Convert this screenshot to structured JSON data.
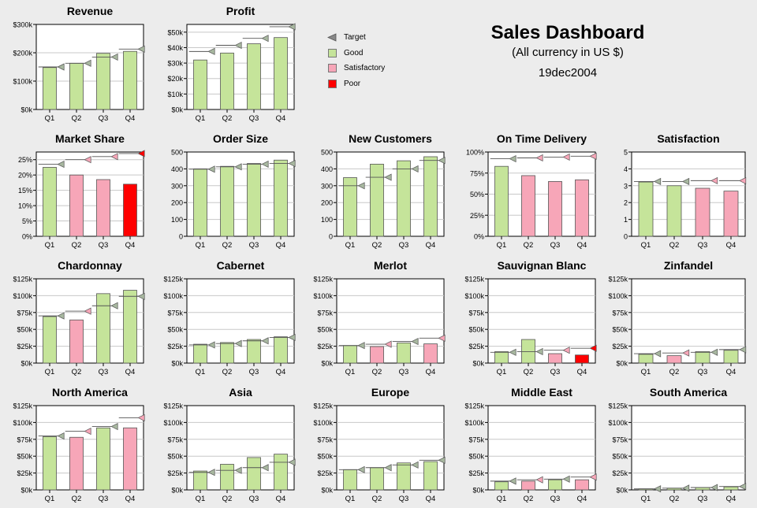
{
  "dashboard": {
    "title": "Sales Dashboard",
    "subtitle": "(All currency in US $)",
    "date": "19dec2004"
  },
  "legend": [
    {
      "label": "Target",
      "kind": "target"
    },
    {
      "label": "Good",
      "kind": "good"
    },
    {
      "label": "Satisfactory",
      "kind": "sat"
    },
    {
      "label": "Poor",
      "kind": "poor"
    }
  ],
  "colors": {
    "good": "#c5e49a",
    "satisfactory": "#f7a6b8",
    "poor": "#ff0000",
    "target_marker": "#a8b8a0",
    "background": "#ececec"
  },
  "chart_data": [
    {
      "type": "bar",
      "title": "Revenue",
      "categories": [
        "Q1",
        "Q2",
        "Q3",
        "Q4"
      ],
      "values": [
        148000,
        163000,
        198000,
        205000
      ],
      "targets": [
        150000,
        163000,
        185000,
        213000
      ],
      "status": [
        "good",
        "good",
        "good",
        "good"
      ],
      "ylim": [
        0,
        300000
      ],
      "yticks": [
        0,
        100000,
        200000,
        300000
      ],
      "ytick_labels": [
        "$0k",
        "$100k",
        "$200k",
        "$300k"
      ]
    },
    {
      "type": "bar",
      "title": "Profit",
      "categories": [
        "Q1",
        "Q2",
        "Q3",
        "Q4"
      ],
      "values": [
        32000,
        36500,
        42500,
        46500
      ],
      "targets": [
        37500,
        41500,
        46000,
        53500
      ],
      "status": [
        "good",
        "good",
        "good",
        "good"
      ],
      "ylim": [
        0,
        55000
      ],
      "yticks": [
        0,
        10000,
        20000,
        30000,
        40000,
        50000
      ],
      "ytick_labels": [
        "$0k",
        "$10k",
        "$20k",
        "$30k",
        "$40k",
        "$50k"
      ]
    },
    {
      "type": "bar",
      "title": "Market Share",
      "categories": [
        "Q1",
        "Q2",
        "Q3",
        "Q4"
      ],
      "values": [
        22.5,
        20,
        18.5,
        17
      ],
      "targets": [
        23.5,
        25,
        26,
        27
      ],
      "status": [
        "good",
        "sat",
        "sat",
        "poor"
      ],
      "ylim": [
        0,
        27.5
      ],
      "yticks": [
        0,
        5,
        10,
        15,
        20,
        25
      ],
      "ytick_labels": [
        "0%",
        "5%",
        "10%",
        "15%",
        "20%",
        "25%"
      ]
    },
    {
      "type": "bar",
      "title": "Order Size",
      "categories": [
        "Q1",
        "Q2",
        "Q3",
        "Q4"
      ],
      "values": [
        400,
        415,
        432,
        452
      ],
      "targets": [
        398,
        412,
        428,
        432
      ],
      "status": [
        "good",
        "good",
        "good",
        "good"
      ],
      "ylim": [
        0,
        500
      ],
      "yticks": [
        0,
        100,
        200,
        300,
        400,
        500
      ],
      "ytick_labels": [
        "0",
        "100",
        "200",
        "300",
        "400",
        "500"
      ]
    },
    {
      "type": "bar",
      "title": "New Customers",
      "categories": [
        "Q1",
        "Q2",
        "Q3",
        "Q4"
      ],
      "values": [
        348,
        428,
        448,
        472
      ],
      "targets": [
        300,
        350,
        400,
        450
      ],
      "status": [
        "good",
        "good",
        "good",
        "good"
      ],
      "ylim": [
        0,
        500
      ],
      "yticks": [
        0,
        100,
        200,
        300,
        400,
        500
      ],
      "ytick_labels": [
        "0",
        "100",
        "200",
        "300",
        "400",
        "500"
      ]
    },
    {
      "type": "bar",
      "title": "On Time Delivery",
      "categories": [
        "Q1",
        "Q2",
        "Q3",
        "Q4"
      ],
      "values": [
        83,
        72,
        65,
        67
      ],
      "targets": [
        92,
        93,
        94,
        95
      ],
      "status": [
        "good",
        "sat",
        "sat",
        "sat"
      ],
      "ylim": [
        0,
        100
      ],
      "yticks": [
        0,
        25,
        50,
        75,
        100
      ],
      "ytick_labels": [
        "0%",
        "25%",
        "50%",
        "75%",
        "100%"
      ]
    },
    {
      "type": "bar",
      "title": "Satisfaction",
      "categories": [
        "Q1",
        "Q2",
        "Q3",
        "Q4"
      ],
      "values": [
        3.22,
        3.0,
        2.85,
        2.68
      ],
      "targets": [
        3.25,
        3.25,
        3.3,
        3.3
      ],
      "status": [
        "good",
        "good",
        "sat",
        "sat"
      ],
      "ylim": [
        0,
        5
      ],
      "yticks": [
        0,
        1,
        2,
        3,
        4,
        5
      ],
      "ytick_labels": [
        "0",
        "1",
        "2",
        "3",
        "4",
        "5"
      ]
    },
    {
      "type": "bar",
      "title": "Chardonnay",
      "categories": [
        "Q1",
        "Q2",
        "Q3",
        "Q4"
      ],
      "values": [
        69000,
        64000,
        103000,
        108000
      ],
      "targets": [
        70000,
        77000,
        85000,
        99000
      ],
      "status": [
        "good",
        "sat",
        "good",
        "good"
      ],
      "ylim": [
        0,
        125000
      ],
      "yticks": [
        0,
        25000,
        50000,
        75000,
        100000,
        125000
      ],
      "ytick_labels": [
        "$0k",
        "$25k",
        "$50k",
        "$75k",
        "$100k",
        "$125k"
      ]
    },
    {
      "type": "bar",
      "title": "Cabernet",
      "categories": [
        "Q1",
        "Q2",
        "Q3",
        "Q4"
      ],
      "values": [
        28000,
        30500,
        35000,
        39000
      ],
      "targets": [
        27000,
        29000,
        33000,
        38000
      ],
      "status": [
        "good",
        "good",
        "good",
        "good"
      ],
      "ylim": [
        0,
        125000
      ],
      "yticks": [
        0,
        25000,
        50000,
        75000,
        100000,
        125000
      ],
      "ytick_labels": [
        "$0k",
        "$25k",
        "$50k",
        "$75k",
        "$100k",
        "$125k"
      ]
    },
    {
      "type": "bar",
      "title": "Merlot",
      "categories": [
        "Q1",
        "Q2",
        "Q3",
        "Q4"
      ],
      "values": [
        26000,
        24500,
        30000,
        28500
      ],
      "targets": [
        26000,
        28000,
        32000,
        37000
      ],
      "status": [
        "good",
        "sat",
        "good",
        "sat"
      ],
      "ylim": [
        0,
        125000
      ],
      "yticks": [
        0,
        25000,
        50000,
        75000,
        100000,
        125000
      ],
      "ytick_labels": [
        "$0k",
        "$25k",
        "$50k",
        "$75k",
        "$100k",
        "$125k"
      ]
    },
    {
      "type": "bar",
      "title": "Sauvignan Blanc",
      "categories": [
        "Q1",
        "Q2",
        "Q3",
        "Q4"
      ],
      "values": [
        17000,
        35000,
        14000,
        12000
      ],
      "targets": [
        16000,
        17000,
        19000,
        22000
      ],
      "status": [
        "good",
        "good",
        "sat",
        "poor"
      ],
      "ylim": [
        0,
        125000
      ],
      "yticks": [
        0,
        25000,
        50000,
        75000,
        100000,
        125000
      ],
      "ytick_labels": [
        "$0k",
        "$25k",
        "$50k",
        "$75k",
        "$100k",
        "$125k"
      ]
    },
    {
      "type": "bar",
      "title": "Zinfandel",
      "categories": [
        "Q1",
        "Q2",
        "Q3",
        "Q4"
      ],
      "values": [
        13000,
        11000,
        17000,
        19000
      ],
      "targets": [
        14000,
        15000,
        16000,
        20000
      ],
      "status": [
        "good",
        "sat",
        "good",
        "good"
      ],
      "ylim": [
        0,
        125000
      ],
      "yticks": [
        0,
        25000,
        50000,
        75000,
        100000,
        125000
      ],
      "ytick_labels": [
        "$0k",
        "$25k",
        "$50k",
        "$75k",
        "$100k",
        "$125k"
      ]
    },
    {
      "type": "bar",
      "title": "North America",
      "categories": [
        "Q1",
        "Q2",
        "Q3",
        "Q4"
      ],
      "values": [
        79000,
        78000,
        92000,
        92000
      ],
      "targets": [
        80000,
        87000,
        94000,
        107000
      ],
      "status": [
        "good",
        "sat",
        "good",
        "sat"
      ],
      "ylim": [
        0,
        125000
      ],
      "yticks": [
        0,
        25000,
        50000,
        75000,
        100000,
        125000
      ],
      "ytick_labels": [
        "$0k",
        "$25k",
        "$50k",
        "$75k",
        "$100k",
        "$125k"
      ]
    },
    {
      "type": "bar",
      "title": "Asia",
      "categories": [
        "Q1",
        "Q2",
        "Q3",
        "Q4"
      ],
      "values": [
        28000,
        38000,
        48000,
        53000
      ],
      "targets": [
        26000,
        29000,
        33000,
        41000
      ],
      "status": [
        "good",
        "good",
        "good",
        "good"
      ],
      "ylim": [
        0,
        125000
      ],
      "yticks": [
        0,
        25000,
        50000,
        75000,
        100000,
        125000
      ],
      "ytick_labels": [
        "$0k",
        "$25k",
        "$50k",
        "$75k",
        "$100k",
        "$125k"
      ]
    },
    {
      "type": "bar",
      "title": "Europe",
      "categories": [
        "Q1",
        "Q2",
        "Q3",
        "Q4"
      ],
      "values": [
        30000,
        33000,
        40000,
        42000
      ],
      "targets": [
        30000,
        33000,
        37000,
        44000
      ],
      "status": [
        "good",
        "good",
        "good",
        "good"
      ],
      "ylim": [
        0,
        125000
      ],
      "yticks": [
        0,
        25000,
        50000,
        75000,
        100000,
        125000
      ],
      "ytick_labels": [
        "$0k",
        "$25k",
        "$50k",
        "$75k",
        "$100k",
        "$125k"
      ]
    },
    {
      "type": "bar",
      "title": "Middle East",
      "categories": [
        "Q1",
        "Q2",
        "Q3",
        "Q4"
      ],
      "values": [
        12000,
        13000,
        15000,
        15000
      ],
      "targets": [
        13000,
        15000,
        16000,
        19000
      ],
      "status": [
        "good",
        "sat",
        "good",
        "sat"
      ],
      "ylim": [
        0,
        125000
      ],
      "yticks": [
        0,
        25000,
        50000,
        75000,
        100000,
        125000
      ],
      "ytick_labels": [
        "$0k",
        "$25k",
        "$50k",
        "$75k",
        "$100k",
        "$125k"
      ]
    },
    {
      "type": "bar",
      "title": "South America",
      "categories": [
        "Q1",
        "Q2",
        "Q3",
        "Q4"
      ],
      "values": [
        1500,
        2500,
        3500,
        4500
      ],
      "targets": [
        1500,
        2500,
        3500,
        5000
      ],
      "status": [
        "good",
        "good",
        "good",
        "good"
      ],
      "ylim": [
        0,
        125000
      ],
      "yticks": [
        0,
        25000,
        50000,
        75000,
        100000,
        125000
      ],
      "ytick_labels": [
        "$0k",
        "$25k",
        "$50k",
        "$75k",
        "$100k",
        "$125k"
      ]
    }
  ]
}
